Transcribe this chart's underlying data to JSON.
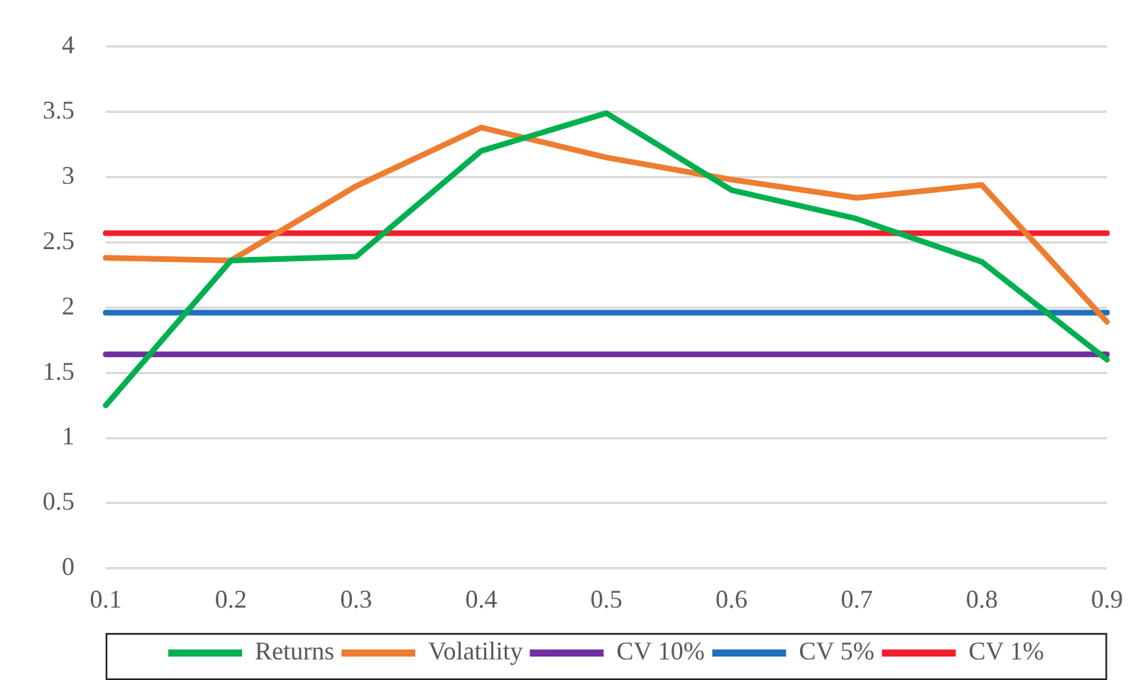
{
  "chart_data": {
    "type": "line",
    "categories": [
      "0.1",
      "0.2",
      "0.3",
      "0.4",
      "0.5",
      "0.6",
      "0.7",
      "0.8",
      "0.9"
    ],
    "series": [
      {
        "name": "Returns",
        "color": "#00b050",
        "values": [
          1.25,
          2.36,
          2.39,
          3.2,
          3.49,
          2.9,
          2.68,
          2.35,
          1.6
        ]
      },
      {
        "name": "Volatility",
        "color": "#ed7d31",
        "values": [
          2.38,
          2.36,
          2.93,
          3.38,
          3.15,
          2.98,
          2.84,
          2.94,
          1.89
        ]
      },
      {
        "name": "CV 10%",
        "color": "#7030a0",
        "values": [
          1.64,
          1.64,
          1.64,
          1.64,
          1.64,
          1.64,
          1.64,
          1.64,
          1.64
        ]
      },
      {
        "name": "CV 5%",
        "color": "#1f6fbf",
        "values": [
          1.96,
          1.96,
          1.96,
          1.96,
          1.96,
          1.96,
          1.96,
          1.96,
          1.96
        ]
      },
      {
        "name": "CV 1%",
        "color": "#f0202a",
        "values": [
          2.57,
          2.57,
          2.57,
          2.57,
          2.57,
          2.57,
          2.57,
          2.57,
          2.57
        ]
      }
    ],
    "ylim": [
      0,
      4
    ],
    "yticks": [
      0,
      0.5,
      1,
      1.5,
      2,
      2.5,
      3,
      3.5,
      4
    ],
    "grid": "y",
    "legend": "bottom",
    "marker": "none",
    "line_style": "solid"
  }
}
